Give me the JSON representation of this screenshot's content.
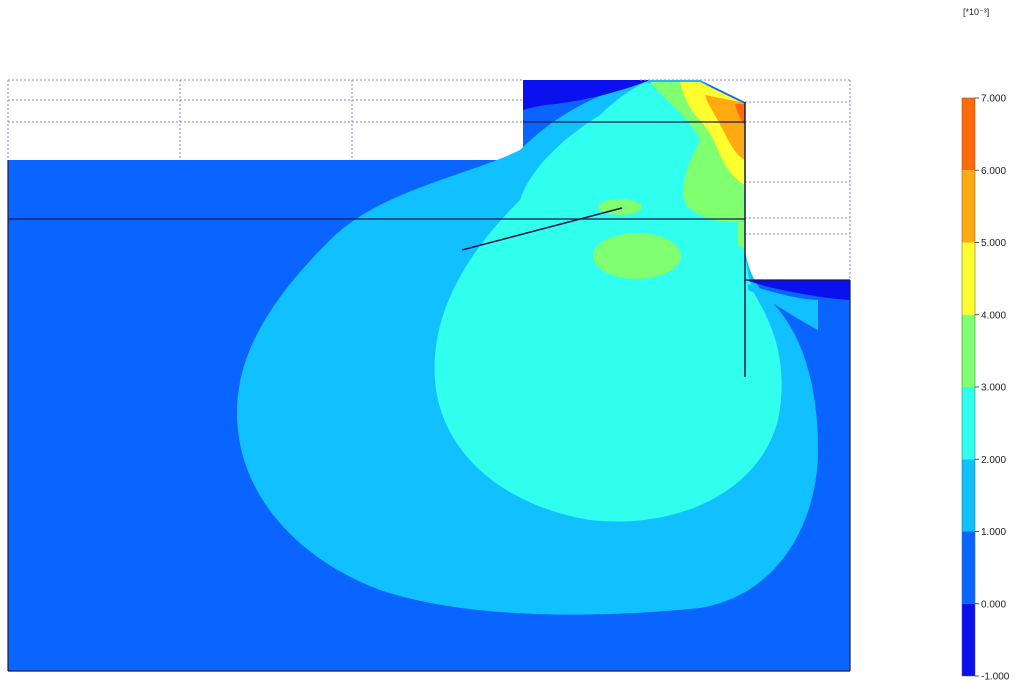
{
  "legend": {
    "unit": "[*10⁻³]",
    "ticks": [
      "7.000",
      "6.000",
      "5.000",
      "4.000",
      "3.000",
      "2.000",
      "1.000",
      "0.000",
      "-1.000"
    ],
    "colors": [
      "#ff6a0a",
      "#ffaa10",
      "#ffff30",
      "#80ff70",
      "#30ffee",
      "#10c0ff",
      "#0a64ff",
      "#0a10ee"
    ]
  },
  "plot": {
    "band_colors": {
      "deep": "#0a10ee",
      "band_0_1": "#0a64ff",
      "band_1_2": "#10c0ff",
      "band_2_3": "#30ffee",
      "band_3_4": "#80ff70",
      "band_4_5": "#ffff30",
      "band_5_6": "#ffaa10",
      "band_6_7": "#ff6a0a"
    },
    "grid_color": "#8888cc",
    "structure_color": "#1a1a4a"
  }
}
